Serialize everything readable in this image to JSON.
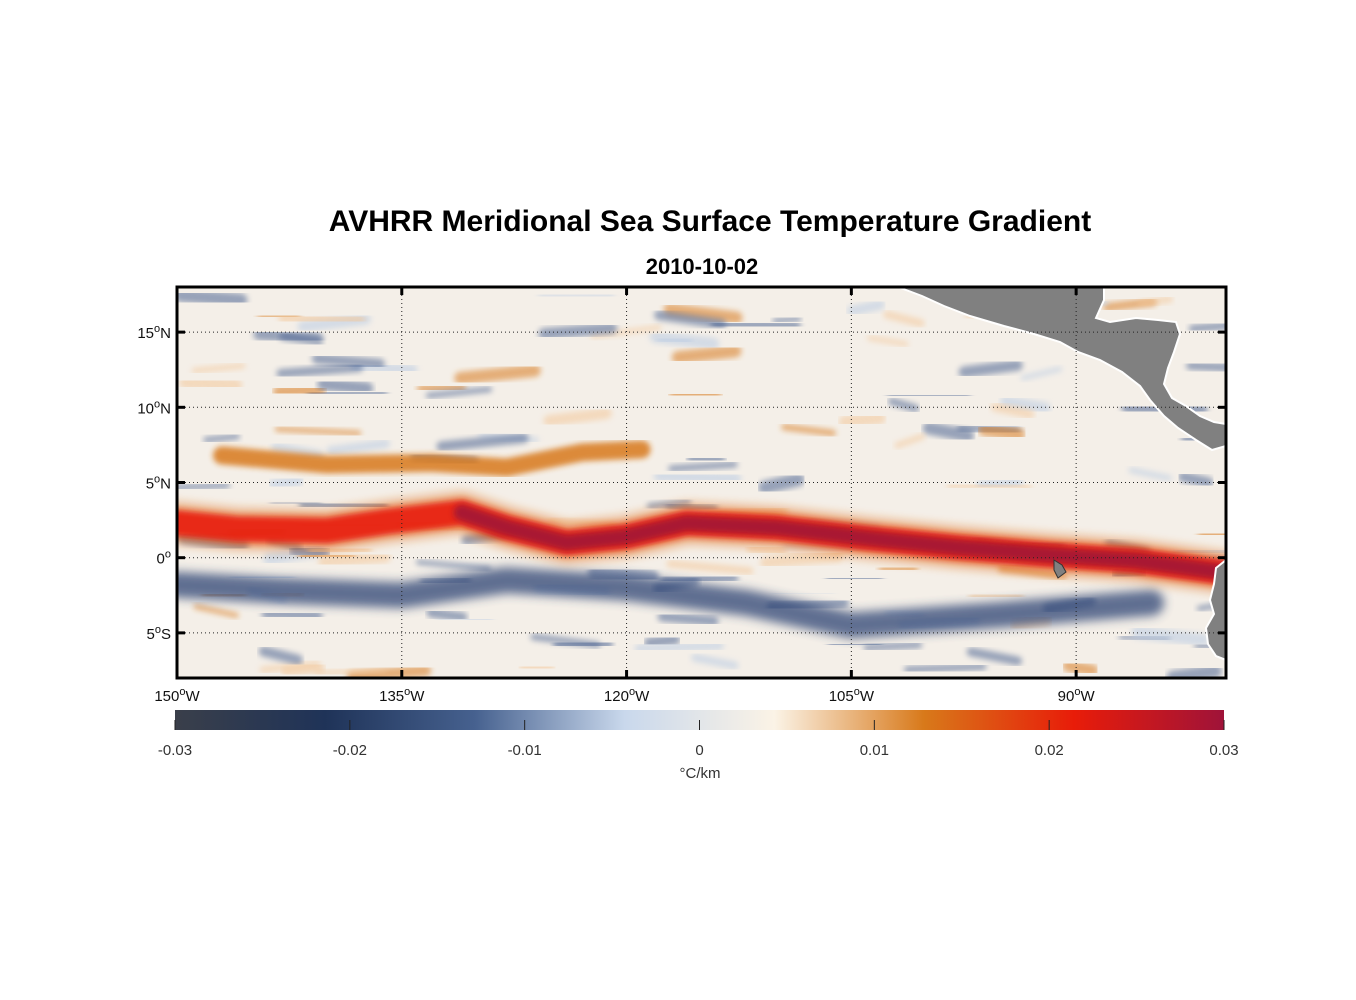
{
  "chart_data": {
    "type": "heatmap",
    "title": "AVHRR Meridional Sea Surface Temperature Gradient",
    "subtitle": "2010-10-02",
    "x_range": [
      -150,
      -80
    ],
    "y_range": [
      -8,
      18
    ],
    "x_ticks": [
      {
        "value": -150,
        "deg": "150",
        "hem": "W"
      },
      {
        "value": -135,
        "deg": "135",
        "hem": "W"
      },
      {
        "value": -120,
        "deg": "120",
        "hem": "W"
      },
      {
        "value": -105,
        "deg": "105",
        "hem": "W"
      },
      {
        "value": -90,
        "deg": "90",
        "hem": "W"
      }
    ],
    "y_ticks": [
      {
        "value": 15,
        "deg": "15",
        "hem": "N"
      },
      {
        "value": 10,
        "deg": "10",
        "hem": "N"
      },
      {
        "value": 5,
        "deg": "5",
        "hem": "N"
      },
      {
        "value": 0,
        "deg": "0",
        "hem": ""
      },
      {
        "value": -5,
        "deg": "5",
        "hem": "S"
      }
    ],
    "grid": true,
    "colorbar": {
      "range": [
        -0.03,
        0.03
      ],
      "ticks": [
        "-0.03",
        "-0.02",
        "-0.01",
        "0",
        "0.01",
        "0.02",
        "0.03"
      ],
      "label": "°C/km",
      "stops": [
        "#3a3f4a",
        "#1f3358",
        "#46618f",
        "#c9d8ec",
        "#fbf3e6",
        "#d8791a",
        "#e81c09",
        "#9f1339"
      ]
    },
    "features": {
      "front_band_positive": [
        {
          "lon": -150,
          "lat": 2.3
        },
        {
          "lon": -146,
          "lat": 1.9
        },
        {
          "lon": -140,
          "lat": 1.8
        },
        {
          "lon": -136,
          "lat": 2.4
        },
        {
          "lon": -131,
          "lat": 3.0
        },
        {
          "lon": -128,
          "lat": 2.0
        },
        {
          "lon": -124,
          "lat": 1.0
        },
        {
          "lon": -120,
          "lat": 1.4
        },
        {
          "lon": -116,
          "lat": 2.3
        },
        {
          "lon": -110,
          "lat": 2.0
        },
        {
          "lon": -104,
          "lat": 1.3
        },
        {
          "lon": -98,
          "lat": 0.7
        },
        {
          "lon": -92,
          "lat": 0.2
        },
        {
          "lon": -86,
          "lat": -0.2
        },
        {
          "lon": -80,
          "lat": -1.0
        }
      ],
      "secondary_band_positive": [
        {
          "lon": -147,
          "lat": 6.8
        },
        {
          "lon": -140,
          "lat": 6.2
        },
        {
          "lon": -133,
          "lat": 6.3
        },
        {
          "lon": -128,
          "lat": 6.0
        },
        {
          "lon": -123,
          "lat": 7.0
        },
        {
          "lon": -119,
          "lat": 7.2
        }
      ],
      "negative_band": [
        {
          "lon": -150,
          "lat": -1.8
        },
        {
          "lon": -143,
          "lat": -2.2
        },
        {
          "lon": -135,
          "lat": -2.5
        },
        {
          "lon": -128,
          "lat": -1.5
        },
        {
          "lon": -120,
          "lat": -2.0
        },
        {
          "lon": -112,
          "lat": -3.0
        },
        {
          "lon": -105,
          "lat": -4.5
        },
        {
          "lon": -95,
          "lat": -3.8
        },
        {
          "lon": -85,
          "lat": -3.0
        }
      ],
      "land_color": "#808080"
    }
  }
}
